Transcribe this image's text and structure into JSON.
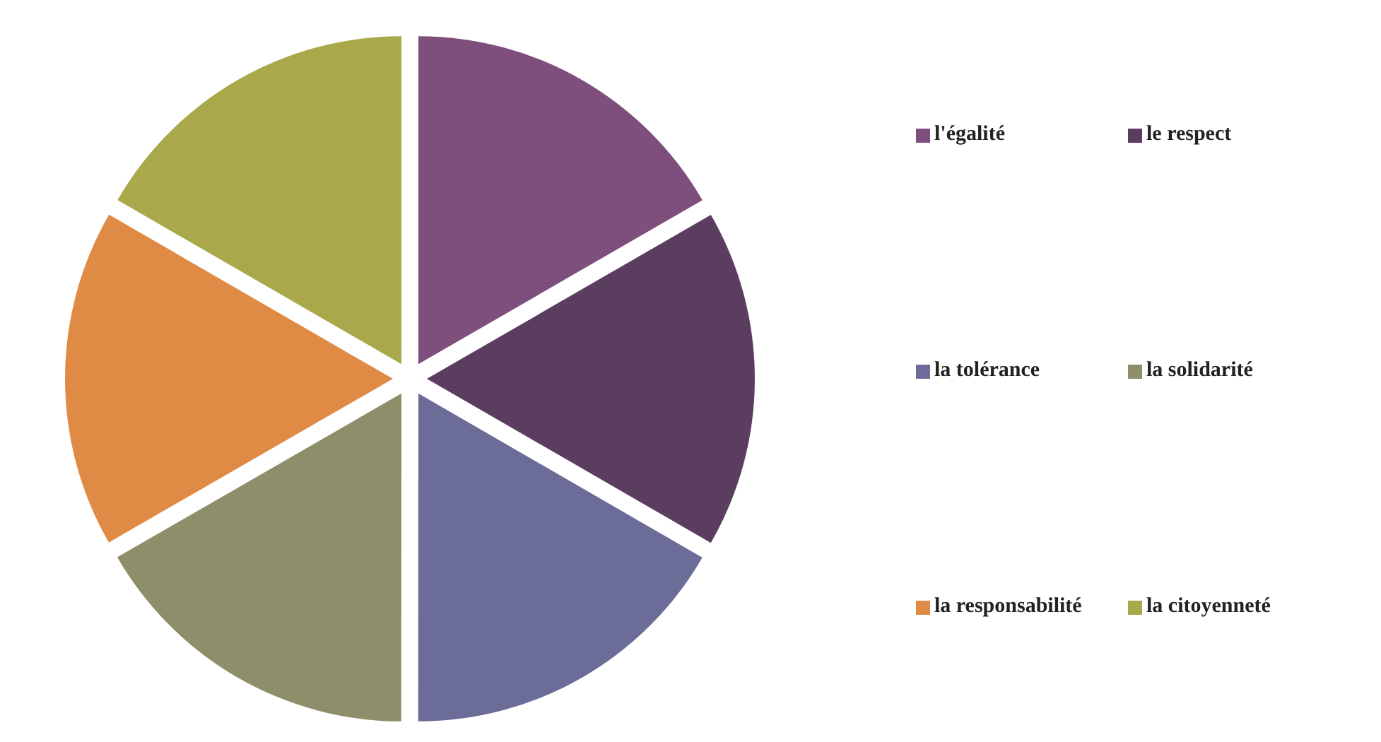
{
  "chart_data": {
    "type": "pie",
    "categories": [
      "l'égalité",
      "le respect",
      "la tolérance",
      "la solidarité",
      "la responsabilité",
      "la citoyenneté"
    ],
    "values": [
      16.67,
      16.67,
      16.67,
      16.67,
      16.66,
      16.66
    ],
    "colors": [
      "#7e4f7c",
      "#5b3d60",
      "#6c6c98",
      "#8e8e6a",
      "#e08b45",
      "#a9a84a"
    ],
    "legend": "right"
  }
}
